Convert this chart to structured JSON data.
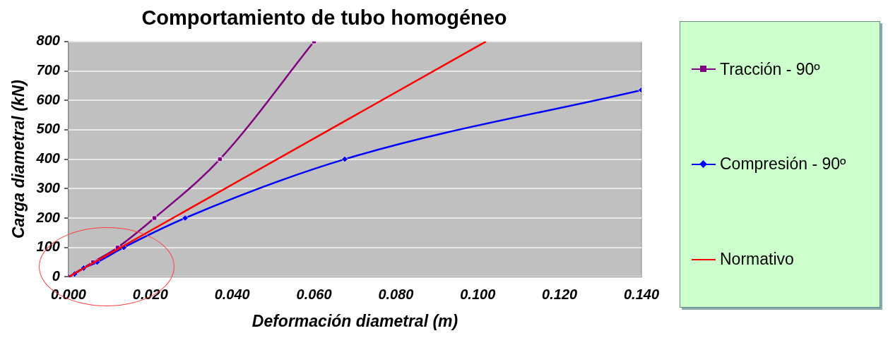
{
  "chart_data": {
    "type": "line",
    "title": "Comportamiento de tubo homogéneo",
    "xlabel": "Deformación diametral (m)",
    "ylabel": "Carga diametral (kN)",
    "xlim": [
      0,
      0.14
    ],
    "xticks": [
      {
        "value": 0,
        "label": "0.000"
      },
      {
        "value": 0.02,
        "label": "0.020"
      },
      {
        "value": 0.04,
        "label": "0.040"
      },
      {
        "value": 0.06,
        "label": "0.060"
      },
      {
        "value": 0.08,
        "label": "0.080"
      },
      {
        "value": 0.1,
        "label": "0.100"
      },
      {
        "value": 0.12,
        "label": "0.120"
      },
      {
        "value": 0.14,
        "label": "0.140"
      }
    ],
    "ylim": [
      0,
      800
    ],
    "yticks": [
      0,
      100,
      200,
      300,
      400,
      500,
      600,
      700,
      800
    ],
    "grid": "y",
    "legend": "right",
    "series": [
      {
        "name": "Tracción - 90º",
        "color": "#800080",
        "marker": "square",
        "x": [
          0,
          0.006,
          0.012,
          0.021,
          0.037,
          0.06
        ],
        "values": [
          0,
          50,
          100,
          200,
          400,
          800
        ]
      },
      {
        "name": "Compresión - 90º",
        "color": "#0000ff",
        "marker": "diamond",
        "x": [
          0,
          0.0015,
          0.0037,
          0.007,
          0.0135,
          0.0285,
          0.0675,
          0.14
        ],
        "values": [
          0,
          10,
          30,
          50,
          100,
          200,
          400,
          635
        ]
      },
      {
        "name": "Normativo",
        "color": "#ff0000",
        "marker": "none",
        "x": [
          0,
          0.102
        ],
        "values": [
          0,
          800
        ]
      }
    ]
  }
}
